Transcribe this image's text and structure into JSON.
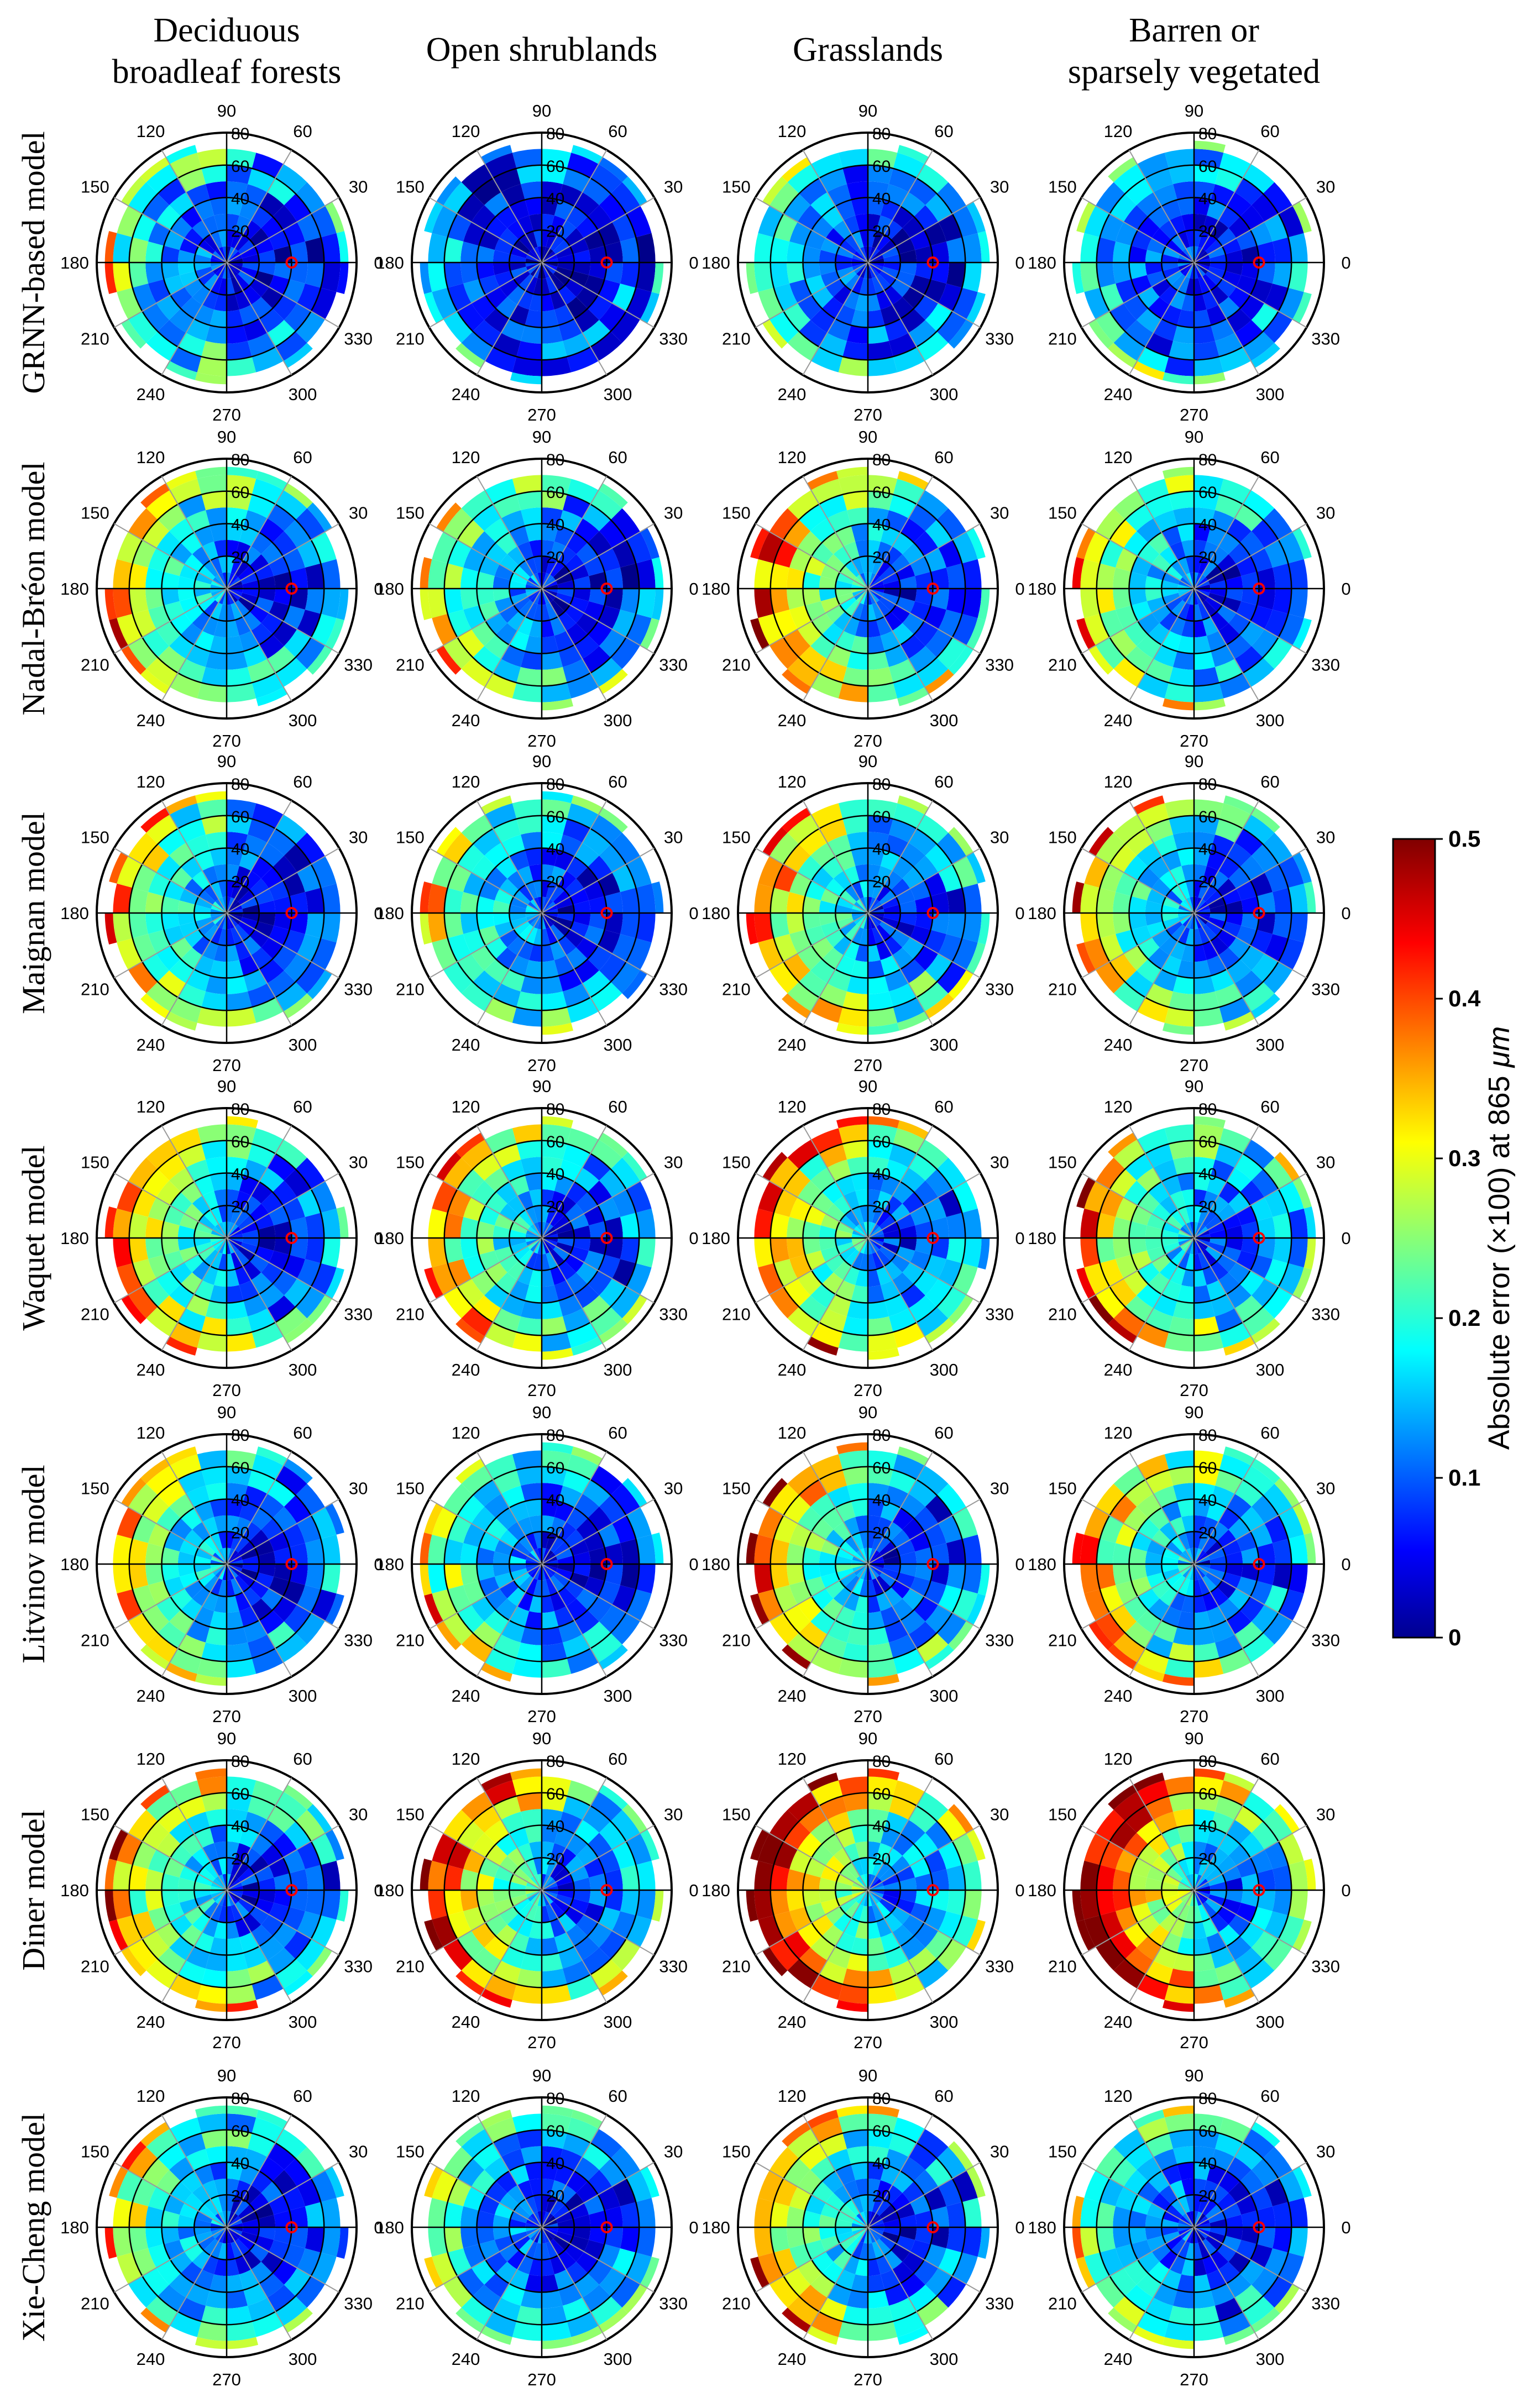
{
  "chart_data": {
    "type": "polar-heatmap-grid",
    "column_titles": [
      [
        "Deciduous",
        "broadleaf forests"
      ],
      [
        "Open shrublands"
      ],
      [
        "Grasslands"
      ],
      [
        "Barren or",
        "sparsely vegetated"
      ]
    ],
    "row_labels": [
      "GRNN-based model",
      "Nadal-Bréon model",
      "Maignan model",
      "Waquet model",
      "Litvinov model",
      "Diner model",
      "Xie-Cheng model"
    ],
    "azimuth_ticks": [
      "0",
      "30",
      "60",
      "90",
      "120",
      "150",
      "180",
      "210",
      "240",
      "270",
      "300",
      "330"
    ],
    "zenith_ticks": [
      "20",
      "40",
      "60",
      "80"
    ],
    "rlim": [
      0,
      80
    ],
    "colorbar": {
      "label": "Absolute error (×100) at 865",
      "unit": "μm",
      "min": 0,
      "max": 0.5,
      "ticks": [
        "0",
        "0.1",
        "0.2",
        "0.3",
        "0.4",
        "0.5"
      ]
    },
    "sun_marker": {
      "azimuth": 0,
      "zenith": 40,
      "color": "#ff0000"
    },
    "error_level_grid_order": "rows = models (top to bottom), columns = land cover (left to right); values are mean absolute error (×100) in the forward / backward hemisphere",
    "error_levels": [
      [
        {
          "forward": 0.08,
          "backward": 0.18
        },
        {
          "forward": 0.06,
          "backward": 0.1
        },
        {
          "forward": 0.08,
          "backward": 0.18
        },
        {
          "forward": 0.1,
          "backward": 0.15
        }
      ],
      [
        {
          "forward": 0.09,
          "backward": 0.28
        },
        {
          "forward": 0.08,
          "backward": 0.24
        },
        {
          "forward": 0.1,
          "backward": 0.34
        },
        {
          "forward": 0.09,
          "backward": 0.26
        }
      ],
      [
        {
          "forward": 0.08,
          "backward": 0.27
        },
        {
          "forward": 0.08,
          "backward": 0.25
        },
        {
          "forward": 0.1,
          "backward": 0.32
        },
        {
          "forward": 0.1,
          "backward": 0.27
        }
      ],
      [
        {
          "forward": 0.09,
          "backward": 0.32
        },
        {
          "forward": 0.1,
          "backward": 0.3
        },
        {
          "forward": 0.12,
          "backward": 0.35
        },
        {
          "forward": 0.13,
          "backward": 0.31
        }
      ],
      [
        {
          "forward": 0.08,
          "backward": 0.27
        },
        {
          "forward": 0.08,
          "backward": 0.22
        },
        {
          "forward": 0.1,
          "backward": 0.33
        },
        {
          "forward": 0.12,
          "backward": 0.3
        }
      ],
      [
        {
          "forward": 0.1,
          "backward": 0.3
        },
        {
          "forward": 0.12,
          "backward": 0.37
        },
        {
          "forward": 0.16,
          "backward": 0.42
        },
        {
          "forward": 0.15,
          "backward": 0.45
        }
      ],
      [
        {
          "forward": 0.08,
          "backward": 0.24
        },
        {
          "forward": 0.08,
          "backward": 0.2
        },
        {
          "forward": 0.09,
          "backward": 0.3
        },
        {
          "forward": 0.1,
          "backward": 0.2
        }
      ]
    ]
  }
}
